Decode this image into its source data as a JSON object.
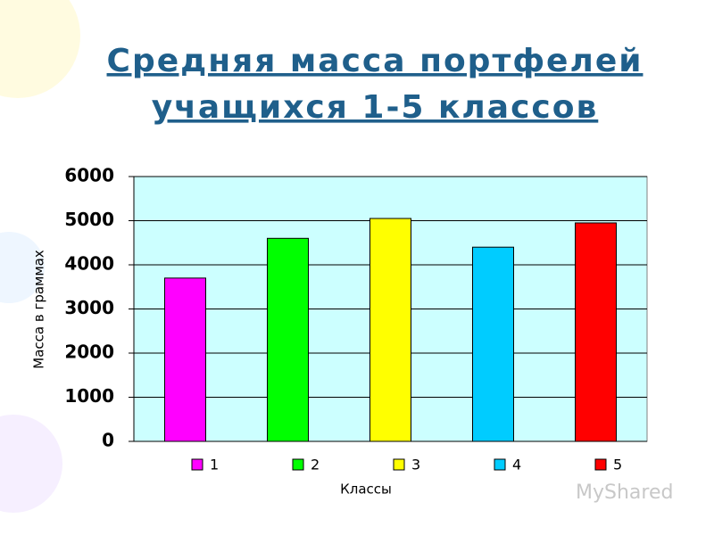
{
  "chart_data": {
    "type": "bar",
    "title": [
      "Средняя масса портфелей",
      "учащихся 1-5 классов"
    ],
    "y_label": "Масса в граммах",
    "x_label": "Классы",
    "categories": [
      null
    ],
    "series": [
      {
        "name": "1",
        "color": "#ff00ff",
        "values": [
          3700
        ]
      },
      {
        "name": "2",
        "color": "#00ff00",
        "values": [
          4600
        ]
      },
      {
        "name": "3",
        "color": "#ffff00",
        "values": [
          5050
        ]
      },
      {
        "name": "4",
        "color": "#00ccff",
        "values": [
          4400
        ]
      },
      {
        "name": "5",
        "color": "#ff0000",
        "values": [
          4950
        ]
      }
    ],
    "ylim": [
      0,
      6000
    ],
    "yticks": [
      0,
      1000,
      2000,
      3000,
      4000,
      5000,
      6000
    ],
    "grid": true,
    "plot_background": "#ccffff",
    "legend": "bottom",
    "watermark": "MyShared"
  }
}
